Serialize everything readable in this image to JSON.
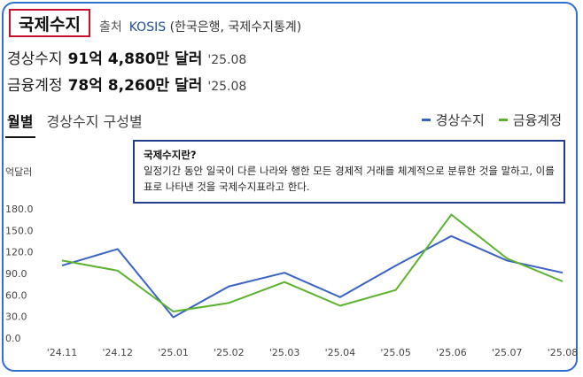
{
  "header": {
    "title": "국제수지",
    "source_label": "출처",
    "source_name": "KOSIS",
    "source_detail": "(한국은행, 국제수지통계)"
  },
  "metrics": [
    {
      "label": "경상수지",
      "value": "91억 4,880만 달러",
      "date": "'25.08"
    },
    {
      "label": "금융계정",
      "value": "78억 8,260만 달러",
      "date": "'25.08"
    }
  ],
  "tabs": [
    {
      "label": "월별",
      "active": true
    },
    {
      "label": "경상수지 구성별",
      "active": false
    }
  ],
  "tooltip": {
    "title": "국제수지란?",
    "body": "일정기간 동안 일국이 다른 나라와 행한 모든 경제적 거래를 체계적으로 분류한 것을 말하고, 이를 표로 나타낸 것을 국제수지표라고 한다."
  },
  "chart_data": {
    "type": "line",
    "ylabel": "억달러",
    "ylim": [
      0,
      180
    ],
    "yticks": [
      "180.0",
      "150.0",
      "120.0",
      "90.0",
      "60.0",
      "30.0",
      "0.0"
    ],
    "ytick_values": [
      180,
      150,
      120,
      90,
      60,
      30,
      0
    ],
    "categories": [
      "'24.11",
      "'24.12",
      "'25.01",
      "'25.02",
      "'25.03",
      "'25.04",
      "'25.05",
      "'25.06",
      "'25.07",
      "'25.08"
    ],
    "series": [
      {
        "name": "경상수지",
        "color": "#3a63c4",
        "values": [
          101,
          124,
          29,
          72,
          91,
          57,
          101,
          142,
          108,
          91
        ]
      },
      {
        "name": "금융계정",
        "color": "#5ab22e",
        "values": [
          108,
          94,
          37,
          49,
          78,
          45,
          67,
          172,
          111,
          79
        ]
      }
    ],
    "legend_position": "top-right",
    "grid": false
  }
}
